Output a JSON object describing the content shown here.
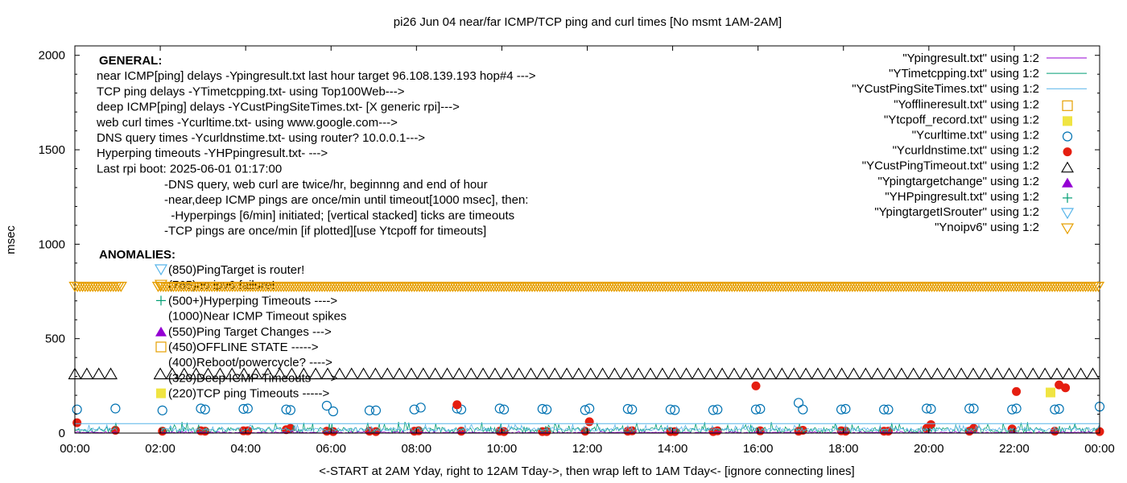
{
  "chart_data": {
    "type": "scatter",
    "title": "pi26 Jun 04  near/far ICMP/TCP ping and curl times [No msmt 1AM-2AM]",
    "xlabel": "<-START at 2AM Yday, right to 12AM Tday->, then wrap left to 1AM Tday<- [ignore connecting lines]",
    "ylabel": "msec",
    "xlim": [
      0,
      24
    ],
    "ylim": [
      0,
      2050
    ],
    "x_tick_labels": [
      "00:00",
      "02:00",
      "04:00",
      "06:00",
      "08:00",
      "10:00",
      "12:00",
      "14:00",
      "16:00",
      "18:00",
      "20:00",
      "22:00",
      "00:00"
    ],
    "y_tick_labels": [
      "0",
      "500",
      "1000",
      "1500",
      "2000"
    ],
    "y_ticks": [
      0,
      500,
      1000,
      1500,
      2000
    ],
    "grid": false,
    "legend_position": "top-right",
    "legend": [
      {
        "label": "\"Ypingresult.txt\" using 1:2",
        "marker": "line",
        "color": "#9400d3"
      },
      {
        "label": "\"YTimetcpping.txt\" using 1:2",
        "marker": "line",
        "color": "#009e73"
      },
      {
        "label": "\"YCustPingSiteTimes.txt\" using 1:2",
        "marker": "line",
        "color": "#56b4e9"
      },
      {
        "label": "\"Yofflineresult.txt\" using 1:2",
        "marker": "open-square",
        "color": "#e69f00"
      },
      {
        "label": "\"Ytcpoff_record.txt\" using 1:2",
        "marker": "filled-square",
        "color": "#f0e442"
      },
      {
        "label": "\"Ycurltime.txt\" using 1:2",
        "marker": "open-circle",
        "color": "#0072b2"
      },
      {
        "label": "\"Ycurldnstime.txt\" using 1:2",
        "marker": "filled-circle",
        "color": "#e51e10"
      },
      {
        "label": "\"YCustPingTimeout.txt\" using 1:2",
        "marker": "open-triangle-up",
        "color": "#000000"
      },
      {
        "label": "\"Ypingtargetchange\" using 1:2",
        "marker": "filled-triangle-up",
        "color": "#9400d3"
      },
      {
        "label": "\"YHPpingresult.txt\" using 1:2",
        "marker": "plus",
        "color": "#009e73"
      },
      {
        "label": "\"YpingtargetISrouter\" using 1:2",
        "marker": "open-triangle-down",
        "color": "#56b4e9"
      },
      {
        "label": "\"Ynoipv6\" using 1:2",
        "marker": "open-triangle-down",
        "color": "#e69f00"
      }
    ],
    "annotations": {
      "general": [
        "GENERAL:",
        "near ICMP[ping] delays -Ypingresult.txt last hour target 96.108.139.193 hop#4 --->",
        "TCP ping delays -YTimetcpping.txt- using Top100Web--->",
        "deep ICMP[ping] delays -YCustPingSiteTimes.txt- [X generic rpi]--->",
        "web curl times -Ycurltime.txt- using www.google.com--->",
        "DNS query times -Ycurldnstime.txt- using router? 10.0.0.1--->",
        "Hyperping timeouts -YHPpingresult.txt- --->",
        "Last rpi boot: 2025-06-01 01:17:00"
      ],
      "notes": [
        "-DNS query, web curl are twice/hr, beginnng and end of hour",
        "-near,deep ICMP pings are once/min until timeout[1000 msec], then:",
        "  -Hyperpings [6/min] initiated; [vertical stacked] ticks are timeouts",
        "-TCP pings are once/min [if plotted][use Ytcpoff for timeouts]"
      ],
      "anomalies_title": "ANOMALIES:",
      "anomalies": [
        {
          "text": "(850)PingTarget is router!",
          "marker": "open-triangle-down",
          "color": "#56b4e9"
        },
        {
          "text": "(765)no ipv6 failure!",
          "marker": "open-triangle-down",
          "color": "#e69f00"
        },
        {
          "text": "(500+)Hyperping Timeouts ---->",
          "marker": "plus",
          "color": "#009e73"
        },
        {
          "text": "(1000)Near ICMP Timeout spikes",
          "marker": "none",
          "color": "#9400d3"
        },
        {
          "text": "(550)Ping Target Changes --->",
          "marker": "filled-triangle-up",
          "color": "#9400d3"
        },
        {
          "text": "(450)OFFLINE STATE ----->",
          "marker": "open-square",
          "color": "#e69f00"
        },
        {
          "text": "(400)Reboot/powercycle? ---->",
          "marker": "none",
          "color": "#000000"
        },
        {
          "text": "(320)Deep ICMP Timeouts ---->",
          "marker": "none",
          "color": "#000000"
        },
        {
          "text": "(220)TCP ping Timeouts ----->",
          "marker": "filled-square",
          "color": "#f0e442"
        }
      ]
    },
    "series": [
      {
        "name": "Ynoipv6",
        "marker": "open-triangle-down",
        "color": "#e69f00",
        "y": 775,
        "x_ranges": [
          [
            0,
            1.1
          ],
          [
            1.95,
            24
          ]
        ],
        "step": 0.06
      },
      {
        "name": "YCustPingTimeout",
        "marker": "open-triangle-up",
        "color": "#000000",
        "y": 315,
        "x_ranges": [
          [
            0,
            1.0
          ],
          [
            2.0,
            24
          ]
        ],
        "step": 0.28
      },
      {
        "name": "Ycurltime",
        "marker": "open-circle",
        "color": "#0072b2",
        "points": [
          [
            0.05,
            125
          ],
          [
            0.95,
            130
          ],
          [
            2.05,
            120
          ],
          [
            2.95,
            130
          ],
          [
            3.05,
            125
          ],
          [
            3.95,
            128
          ],
          [
            4.05,
            130
          ],
          [
            4.95,
            125
          ],
          [
            5.05,
            122
          ],
          [
            5.9,
            145
          ],
          [
            6.05,
            115
          ],
          [
            6.9,
            120
          ],
          [
            7.05,
            120
          ],
          [
            7.95,
            125
          ],
          [
            8.1,
            135
          ],
          [
            8.95,
            130
          ],
          [
            9.05,
            125
          ],
          [
            9.95,
            130
          ],
          [
            10.05,
            125
          ],
          [
            10.95,
            128
          ],
          [
            11.05,
            125
          ],
          [
            11.95,
            122
          ],
          [
            12.05,
            130
          ],
          [
            12.95,
            128
          ],
          [
            13.05,
            125
          ],
          [
            13.95,
            125
          ],
          [
            14.05,
            122
          ],
          [
            14.95,
            122
          ],
          [
            15.05,
            125
          ],
          [
            15.95,
            125
          ],
          [
            16.05,
            128
          ],
          [
            16.95,
            160
          ],
          [
            17.05,
            125
          ],
          [
            17.95,
            125
          ],
          [
            18.05,
            128
          ],
          [
            18.95,
            125
          ],
          [
            19.05,
            125
          ],
          [
            19.95,
            130
          ],
          [
            20.05,
            128
          ],
          [
            20.95,
            130
          ],
          [
            21.05,
            130
          ],
          [
            21.95,
            125
          ],
          [
            22.05,
            130
          ],
          [
            22.95,
            125
          ],
          [
            23.05,
            128
          ],
          [
            24.0,
            140
          ]
        ]
      },
      {
        "name": "Ycurldnstime",
        "marker": "filled-circle",
        "color": "#e51e10",
        "points": [
          [
            0.05,
            55
          ],
          [
            0.95,
            15
          ],
          [
            2.05,
            10
          ],
          [
            2.95,
            12
          ],
          [
            3.05,
            10
          ],
          [
            3.95,
            12
          ],
          [
            4.05,
            12
          ],
          [
            4.95,
            18
          ],
          [
            5.05,
            25
          ],
          [
            5.9,
            10
          ],
          [
            6.05,
            8
          ],
          [
            6.9,
            10
          ],
          [
            7.05,
            8
          ],
          [
            7.95,
            10
          ],
          [
            8.05,
            12
          ],
          [
            8.95,
            150
          ],
          [
            9.05,
            10
          ],
          [
            9.95,
            10
          ],
          [
            10.05,
            8
          ],
          [
            10.95,
            8
          ],
          [
            11.05,
            8
          ],
          [
            11.95,
            10
          ],
          [
            12.05,
            60
          ],
          [
            12.95,
            10
          ],
          [
            13.05,
            12
          ],
          [
            13.95,
            8
          ],
          [
            14.05,
            8
          ],
          [
            14.95,
            8
          ],
          [
            15.05,
            12
          ],
          [
            15.95,
            250
          ],
          [
            16.05,
            12
          ],
          [
            16.95,
            10
          ],
          [
            17.05,
            15
          ],
          [
            17.95,
            12
          ],
          [
            18.05,
            10
          ],
          [
            18.95,
            10
          ],
          [
            19.05,
            10
          ],
          [
            19.95,
            25
          ],
          [
            20.05,
            45
          ],
          [
            20.95,
            10
          ],
          [
            21.05,
            25
          ],
          [
            21.95,
            22
          ],
          [
            22.05,
            220
          ],
          [
            22.95,
            10
          ],
          [
            23.05,
            255
          ],
          [
            23.2,
            240
          ],
          [
            24.0,
            8
          ]
        ]
      },
      {
        "name": "Ytcpoff_record",
        "marker": "filled-square",
        "color": "#f0e442",
        "points": [
          [
            22.85,
            215
          ]
        ]
      },
      {
        "name": "YTimetcpping",
        "marker": "line",
        "color": "#009e73",
        "y_range": [
          0,
          60
        ]
      },
      {
        "name": "YCustPingSiteTimes",
        "marker": "line",
        "color": "#56b4e9",
        "y_range": [
          10,
          45
        ]
      },
      {
        "name": "Ypingresult",
        "marker": "line",
        "color": "#9400d3",
        "y_range": [
          0,
          10
        ]
      }
    ]
  }
}
